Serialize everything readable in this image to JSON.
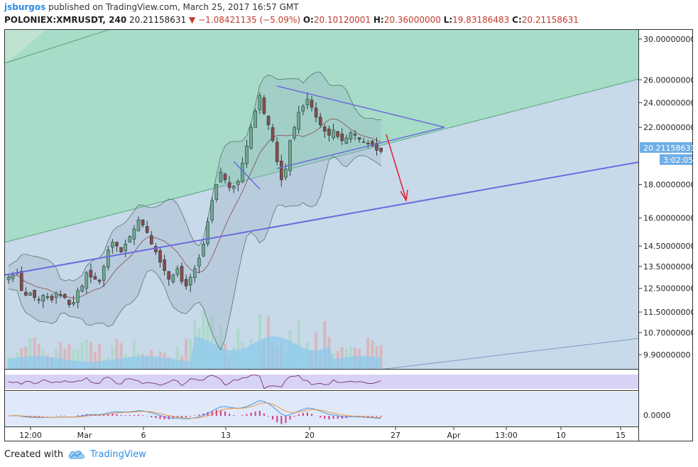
{
  "header": {
    "user": "jsburgos",
    "published_text": "published on TradingView.com, March 25, 2017 16:57 GMT"
  },
  "ticker": {
    "symbol": "POLONIEX:XMRUSDT, 240",
    "price": "20.21158631",
    "change": "▼ −1.08421135 (−5.09%)",
    "open_label": "O:",
    "open": "20.10120001",
    "high_label": "H:",
    "high": "20.36000000",
    "low_label": "L:",
    "low": "19.83186483",
    "close_label": "C:",
    "close": "20.21158631"
  },
  "price_axis": {
    "labels": [
      "30.00000000",
      "26.00000000",
      "24.00000000",
      "22.00000000",
      "18.00000000",
      "16.00000000",
      "14.50000000",
      "13.50000000",
      "12.50000000",
      "11.50000000",
      "10.70000000",
      "9.90000000"
    ],
    "current_price": "20.21158631",
    "countdown": "3:02:05"
  },
  "macd_axis": {
    "zero_label": "0.0000"
  },
  "time_axis": {
    "labels": [
      "12:00",
      "Mar",
      "6",
      "13",
      "20",
      "27",
      "Apr",
      "13:00",
      "10",
      "15"
    ]
  },
  "colors": {
    "up": "#6bab8e",
    "down": "#8b4a4a",
    "trendline": "#6b6bdc",
    "fib_green": "#a7dcc8",
    "fib_blue": "#c8d9ea",
    "arrow": "#e0202a",
    "rsi_bg": "#d7d3f5",
    "macd_bg": "#dfe9f9",
    "volume": "#8ec9ee"
  },
  "footer": {
    "created_with": "Created with",
    "brand": "TradingView",
    "logo_icon": "tradingview-cloud-icon"
  },
  "chart_data": {
    "type": "candlestick",
    "title": "POLONIEX:XMRUSDT, 240",
    "xlabel": "",
    "ylabel": "",
    "ylim": [
      9.2,
      31.5
    ],
    "x_ticks": [
      "12:00",
      "Mar",
      "6",
      "13",
      "20",
      "27",
      "Apr",
      "13:00",
      "10",
      "15"
    ],
    "y_ticks": [
      30,
      26,
      24,
      22,
      18,
      16,
      14.5,
      13.5,
      12.5,
      11.5,
      10.7,
      9.9
    ],
    "series": [
      {
        "name": "close",
        "values": [
          13.0,
          13.1,
          13.2,
          12.4,
          12.2,
          12.3,
          12.1,
          12.0,
          12.2,
          12.1,
          12.0,
          12.3,
          12.2,
          12.1,
          11.8,
          11.9,
          12.4,
          12.6,
          13.2,
          13.0,
          12.9,
          12.8,
          13.5,
          14.3,
          14.7,
          14.5,
          14.2,
          14.6,
          15.0,
          15.4,
          15.9,
          15.6,
          15.2,
          14.6,
          14.2,
          13.7,
          13.3,
          12.9,
          13.1,
          13.4,
          12.8,
          12.6,
          13.0,
          13.4,
          13.9,
          14.6,
          15.8,
          17.0,
          18.0,
          18.8,
          18.3,
          17.8,
          17.9,
          18.2,
          19.4,
          20.6,
          22.0,
          23.3,
          24.6,
          23.1,
          22.2,
          21.0,
          19.5,
          18.3,
          19.0,
          21.0,
          22.0,
          23.2,
          23.7,
          24.3,
          23.6,
          22.8,
          22.2,
          21.7,
          21.4,
          21.8,
          21.3,
          21.0,
          21.2,
          21.6,
          21.4,
          21.1,
          20.9,
          20.8,
          20.6,
          20.3,
          20.21
        ]
      }
    ],
    "annotations": {
      "current_price": 20.21158631,
      "countdown": "3:02:05",
      "projection_arrow_target": 17.5
    }
  }
}
